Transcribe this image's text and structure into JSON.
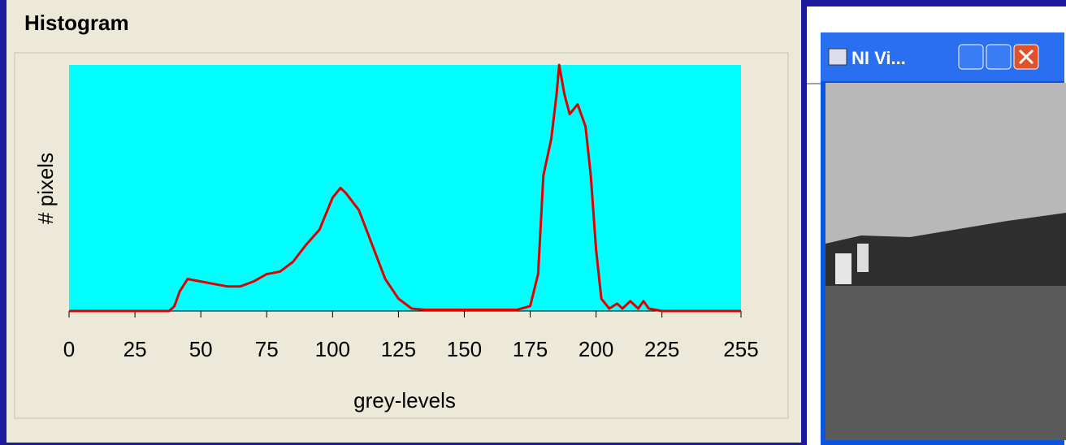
{
  "panel": {
    "title": "Histogram"
  },
  "chart_data": {
    "type": "line",
    "x_label": "grey-levels",
    "y_label": "# pixels",
    "x": [
      0,
      35,
      38,
      40,
      42,
      45,
      50,
      55,
      60,
      65,
      70,
      75,
      80,
      85,
      90,
      95,
      100,
      103,
      105,
      110,
      115,
      120,
      125,
      130,
      135,
      150,
      170,
      175,
      178,
      180,
      183,
      185,
      186,
      188,
      190,
      193,
      196,
      198,
      200,
      202,
      205,
      208,
      210,
      213,
      216,
      218,
      220,
      225,
      255
    ],
    "series": [
      {
        "color": "#e00000",
        "values": [
          0,
          0,
          0,
          2,
          8,
          13,
          12,
          11,
          10,
          10,
          12,
          15,
          16,
          20,
          27,
          33,
          46,
          50,
          48,
          41,
          27,
          13,
          5,
          1,
          0.5,
          0.5,
          0.5,
          2,
          15,
          55,
          70,
          88,
          100,
          88,
          80,
          84,
          75,
          55,
          25,
          5,
          1,
          3,
          1,
          4,
          1,
          4,
          1,
          0,
          0
        ]
      }
    ],
    "xlim": [
      0,
      255
    ],
    "ylim": [
      0,
      100
    ],
    "xticks": [
      0,
      25,
      50,
      75,
      100,
      125,
      150,
      175,
      200,
      225,
      255
    ],
    "background": "#00ffff"
  },
  "window": {
    "title": "NI Vi..."
  }
}
